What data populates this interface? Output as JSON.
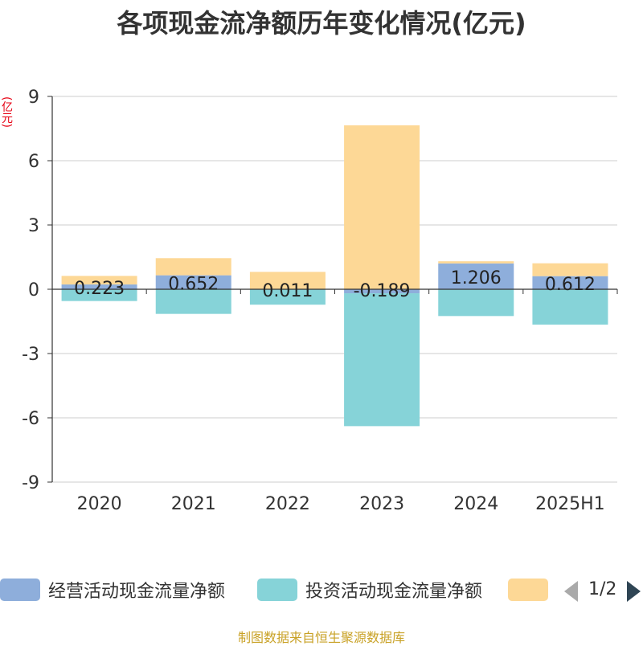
{
  "chart_data": {
    "type": "bar",
    "stacked": true,
    "title": "各项现金流净额历年变化情况(亿元)",
    "ylabel": "(亿元)",
    "ylim": [
      -9,
      9
    ],
    "yticks": [
      9,
      6,
      3,
      0,
      -3,
      -6,
      -9
    ],
    "categories": [
      "2020",
      "2021",
      "2022",
      "2023",
      "2024",
      "2025H1"
    ],
    "grid": true,
    "legend_position": "bottom",
    "series": [
      {
        "name": "经营活动现金流量净额",
        "color": "#8eaedb",
        "values": [
          0.223,
          0.652,
          0.011,
          -0.189,
          1.206,
          0.612
        ]
      },
      {
        "name": "投资活动现金流量净额",
        "color": "#86d3d8",
        "values": [
          -0.55,
          -1.15,
          -0.72,
          -6.2,
          -1.25,
          -1.65
        ]
      },
      {
        "name": "",
        "color": "#fdd896",
        "values": [
          0.4,
          0.8,
          0.8,
          7.65,
          0.1,
          0.6
        ]
      }
    ],
    "data_labels": [
      "0.223",
      "0.652",
      "0.011",
      "-0.189",
      "1.206",
      "0.612"
    ]
  },
  "legend": {
    "items": [
      {
        "label": "经营活动现金流量净额",
        "color": "#8eaedb"
      },
      {
        "label": "投资活动现金流量净额",
        "color": "#86d3d8"
      },
      {
        "label": "",
        "color": "#fdd896"
      }
    ],
    "page_indicator": "1/2",
    "prev_icon": "triangle-left-icon",
    "next_icon": "triangle-right-icon"
  },
  "source": "制图数据来自恒生聚源数据库"
}
